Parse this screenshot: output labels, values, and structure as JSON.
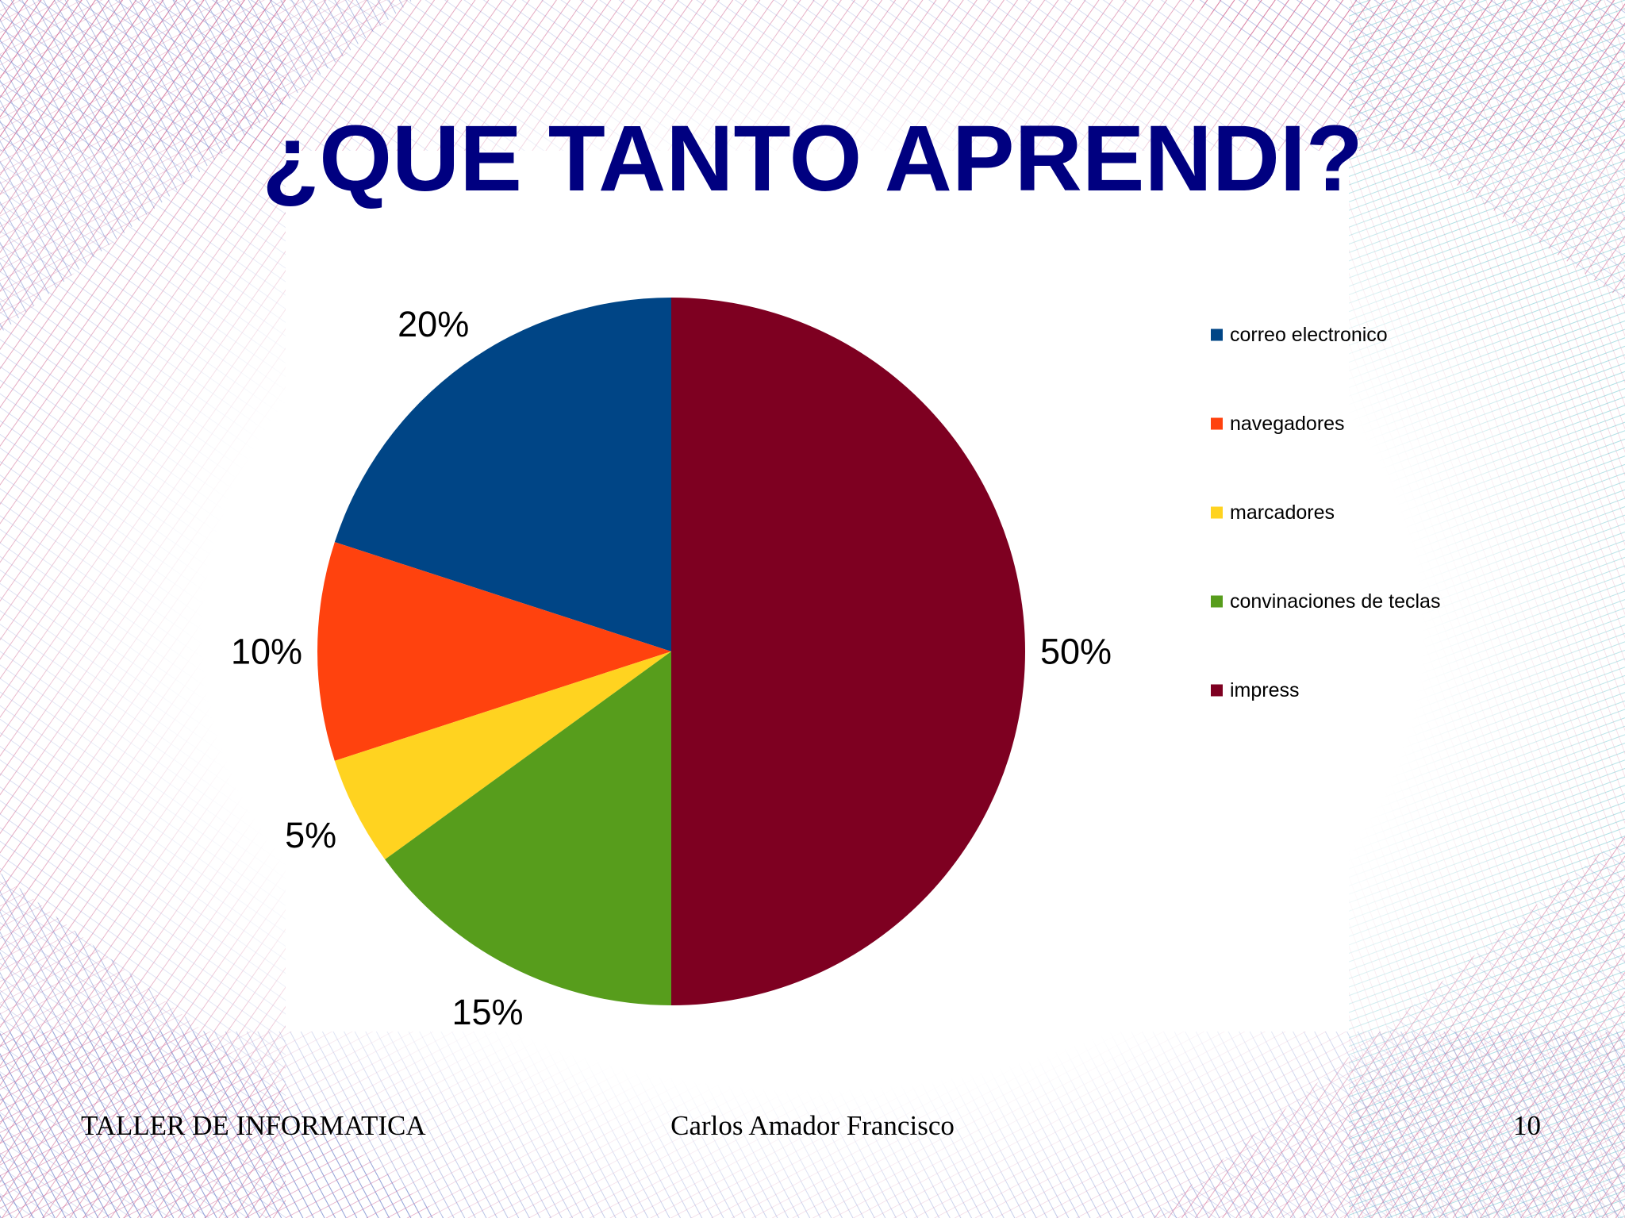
{
  "slide": {
    "title": "¿QUE TANTO APRENDI?",
    "footer": {
      "left": "TALLER DE INFORMATICA",
      "center": "Carlos Amador Francisco",
      "right": "10"
    }
  },
  "chart_data": {
    "type": "pie",
    "title": "",
    "start_angle_deg": 0,
    "direction": "counterclockwise",
    "legend_position": "right",
    "slices": [
      {
        "name": "correo electronico",
        "value": 20,
        "label": "20%",
        "color": "#004586"
      },
      {
        "name": "navegadores",
        "value": 10,
        "label": "10%",
        "color": "#FF420E"
      },
      {
        "name": "marcadores",
        "value": 5,
        "label": "5%",
        "color": "#FFD320"
      },
      {
        "name": "convinaciones de teclas",
        "value": 15,
        "label": "15%",
        "color": "#579D1C"
      },
      {
        "name": "impress",
        "value": 50,
        "label": "50%",
        "color": "#7E0021"
      }
    ]
  }
}
